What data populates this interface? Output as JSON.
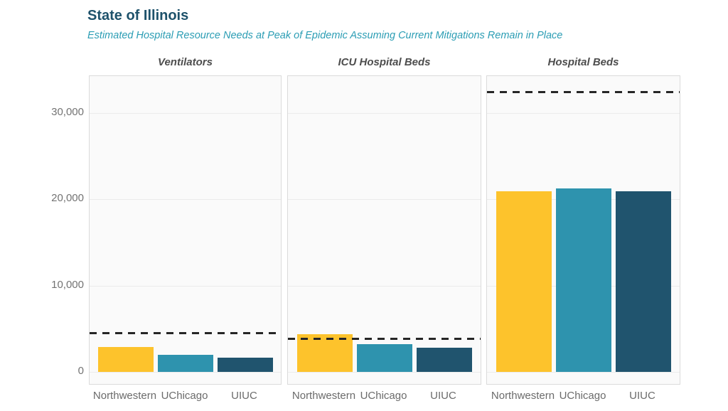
{
  "header": {
    "title": "State of Illinois",
    "subtitle": "Estimated Hospital Resource Needs at Peak of Epidemic Assuming Current Mitigations Remain in Place"
  },
  "chart_data": {
    "type": "bar",
    "layout": "three side-by-side panels sharing one y-axis, capacity shown as black dashed line per panel",
    "categories": [
      "Northwestern",
      "UChicago",
      "UIUC"
    ],
    "yticks": [
      0,
      10000,
      20000,
      30000
    ],
    "ytick_labels": [
      "0",
      "10,000",
      "20,000",
      "30,000"
    ],
    "ylim": [
      0,
      34200
    ],
    "grid": true,
    "panels": [
      {
        "title": "Ventilators",
        "values": [
          2900,
          1950,
          1650
        ],
        "capacity_line": 4500
      },
      {
        "title": "ICU Hospital Beds",
        "values": [
          4350,
          3200,
          2780
        ],
        "capacity_line": 3850
      },
      {
        "title": "Hospital Beds",
        "values": [
          20900,
          21200,
          20900
        ],
        "capacity_line": 32400
      }
    ],
    "bar_colors": {
      "Northwestern": "#FDC32C",
      "UChicago": "#2E93AE",
      "UIUC": "#20546E"
    },
    "capacity_line_color": "#262626",
    "title_color": "#1E526B",
    "subtitle_color": "#2B9DB4"
  }
}
